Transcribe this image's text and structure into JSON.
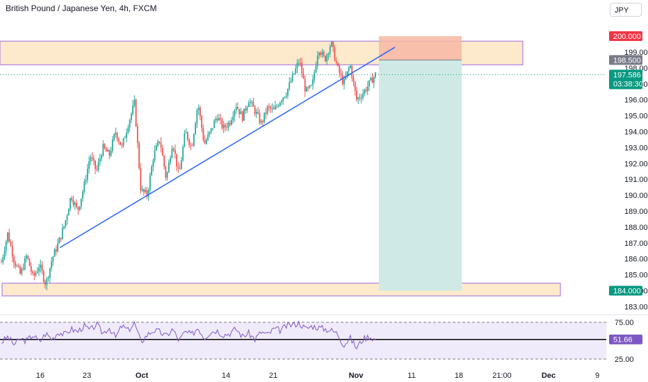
{
  "header": {
    "title": "British Pound / Japanese Yen, 4h, FXCM",
    "currency_button": "JPY"
  },
  "colors": {
    "up": "#26a69a",
    "down": "#ef5350",
    "trendline": "#2962ff",
    "zone_fill": "#fde9cc",
    "zone_border": "#9c6ade",
    "stop_zone": "#f7b7a3",
    "target_zone": "#cfeae6",
    "rsi_line": "#7e57c2",
    "rsi_band": "#f0ebfa",
    "last_price_tag": "#089981",
    "red_tag": "#f23645",
    "gray_tag": "#787b86",
    "rsi_tag": "#7e57c2"
  },
  "chart_data": {
    "type": "candlestick",
    "symbol": "British Pound / Japanese Yen",
    "interval": "4h",
    "source": "FXCM",
    "price_axis": {
      "min": 182.5,
      "max": 200.5,
      "ticks": [
        "183.000",
        "184.000",
        "185.000",
        "186.000",
        "187.000",
        "188.000",
        "189.000",
        "190.000",
        "191.000",
        "192.000",
        "193.000",
        "194.000",
        "195.000",
        "196.000",
        "197.000",
        "198.000",
        "199.000"
      ],
      "tags": {
        "stop": "200.000",
        "entry": "198.500",
        "last_price": "197.586",
        "countdown": "03:38:30",
        "target": "184.000"
      }
    },
    "time_axis": {
      "labels": [
        "16",
        "23",
        "Oct",
        "14",
        "21",
        "Nov",
        "11",
        "18",
        "21:00",
        "Dec",
        "9"
      ],
      "bold_labels": [
        "Oct",
        "Nov",
        "Dec"
      ]
    },
    "price_path": [
      185.8,
      187.6,
      185.9,
      185.0,
      186.2,
      184.8,
      185.6,
      184.4,
      186.0,
      187.0,
      188.2,
      190.0,
      189.0,
      190.5,
      192.5,
      191.5,
      193.0,
      192.5,
      194.0,
      193.0,
      194.5,
      195.8,
      190.3,
      190.0,
      192.5,
      193.5,
      191.0,
      193.4,
      191.2,
      194.0,
      193.0,
      195.8,
      193.2,
      194.0,
      195.0,
      194.2,
      194.6,
      195.7,
      194.9,
      196.0,
      195.3,
      194.5,
      195.5,
      195.3,
      196.0,
      196.5,
      197.5,
      198.5,
      196.5,
      196.8,
      199.3,
      198.5,
      199.6,
      198.0,
      197.0,
      198.2,
      196.0,
      196.4,
      197.0,
      197.586
    ],
    "resistance_zone": [
      198.2,
      199.6
    ],
    "support_zone": [
      183.8,
      184.6
    ],
    "short_position": {
      "entry": 198.5,
      "stop": 200.0,
      "target": 184.0
    },
    "trendline": [
      {
        "date": "Sep 19",
        "price": 186.7
      },
      {
        "date": "Nov 8",
        "price": 199.3
      }
    ],
    "rsi": {
      "period_levels": [
        25.0,
        75.0
      ],
      "midline": 51.66,
      "last_value": "51.66",
      "ticks": [
        "75.00",
        "25.00"
      ],
      "path": [
        48,
        55,
        45,
        52,
        50,
        58,
        48,
        60,
        52,
        62,
        58,
        66,
        62,
        70,
        64,
        72,
        60,
        68,
        54,
        70,
        64,
        74,
        48,
        58,
        64,
        62,
        56,
        66,
        50,
        62,
        58,
        68,
        54,
        62,
        64,
        58,
        60,
        66,
        56,
        60,
        52,
        62,
        58,
        66,
        64,
        70,
        72,
        74,
        66,
        70,
        68,
        66,
        64,
        60,
        44,
        54,
        40,
        52,
        56,
        51.66
      ]
    }
  }
}
